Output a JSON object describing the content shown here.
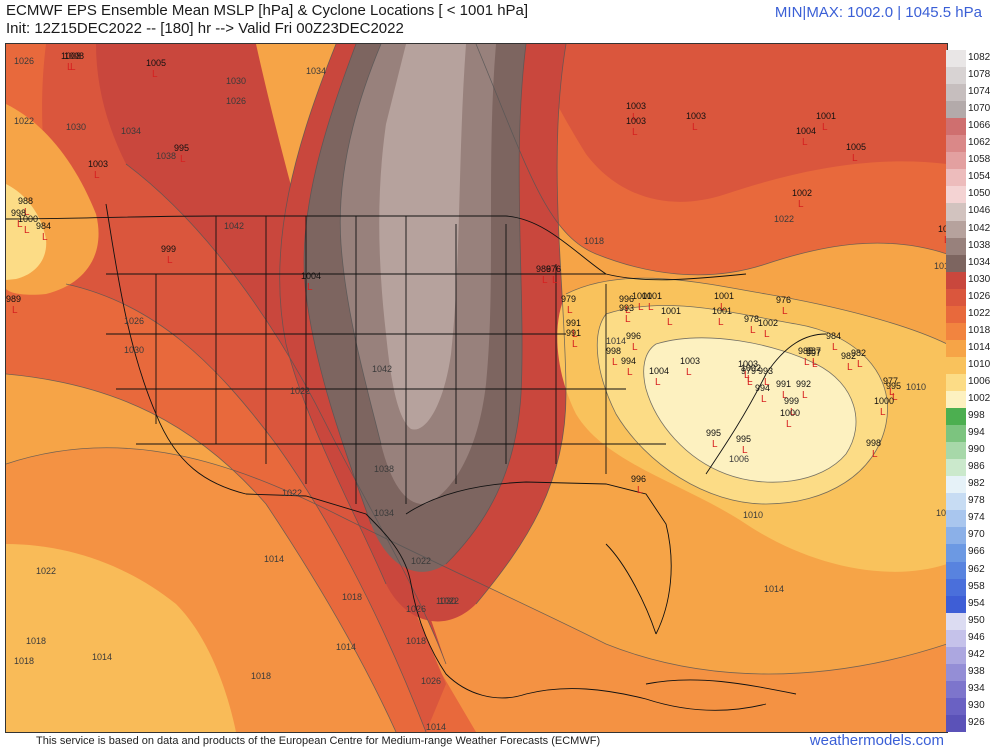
{
  "header": {
    "title": "ECMWF EPS Ensemble Mean MSLP [hPa] & Cyclone Locations [ < 1001 hPa]",
    "init_line": "Init: 12Z15DEC2022 -- [180] hr --> Valid Fri 00Z23DEC2022",
    "minmax": "MIN|MAX: 1002.0 | 1045.5 hPa"
  },
  "footer": {
    "disclaimer": "This service is based on data and products of the European Centre for Medium-range Weather Forecasts (ECMWF)",
    "brand": "weathermodels.com"
  },
  "colorbar": [
    {
      "label": "1082",
      "color": "#e9e6e6"
    },
    {
      "label": "1078",
      "color": "#d8d3d3"
    },
    {
      "label": "1074",
      "color": "#c6bebe"
    },
    {
      "label": "1070",
      "color": "#b3aaaa"
    },
    {
      "label": "1066",
      "color": "#cf6f6f"
    },
    {
      "label": "1062",
      "color": "#da8888"
    },
    {
      "label": "1058",
      "color": "#e3a0a0"
    },
    {
      "label": "1054",
      "color": "#edbcbc"
    },
    {
      "label": "1050",
      "color": "#f4d3d3"
    },
    {
      "label": "1046",
      "color": "#d2c3bf"
    },
    {
      "label": "1042",
      "color": "#b6a29d"
    },
    {
      "label": "1038",
      "color": "#98817c"
    },
    {
      "label": "1034",
      "color": "#7d6560"
    },
    {
      "label": "1030",
      "color": "#c9473d"
    },
    {
      "label": "1026",
      "color": "#da563d"
    },
    {
      "label": "1022",
      "color": "#e8693c"
    },
    {
      "label": "1018",
      "color": "#f2843f"
    },
    {
      "label": "1014",
      "color": "#f6a447"
    },
    {
      "label": "1010",
      "color": "#f9c25c"
    },
    {
      "label": "1006",
      "color": "#fcdc86"
    },
    {
      "label": "1002",
      "color": "#fdf1c0"
    },
    {
      "label": "998",
      "color": "#4caf50"
    },
    {
      "label": "994",
      "color": "#7cc47f"
    },
    {
      "label": "990",
      "color": "#a7d8a9"
    },
    {
      "label": "986",
      "color": "#cbe9cc"
    },
    {
      "label": "982",
      "color": "#e6f2f8"
    },
    {
      "label": "978",
      "color": "#c7dcf3"
    },
    {
      "label": "974",
      "color": "#a9c6ee"
    },
    {
      "label": "970",
      "color": "#8bb0e8"
    },
    {
      "label": "966",
      "color": "#6c99e3"
    },
    {
      "label": "962",
      "color": "#5883df"
    },
    {
      "label": "958",
      "color": "#4a6fdb"
    },
    {
      "label": "954",
      "color": "#3e5ed6"
    },
    {
      "label": "950",
      "color": "#dcdcf2"
    },
    {
      "label": "946",
      "color": "#c5c2ea"
    },
    {
      "label": "942",
      "color": "#aca7e0"
    },
    {
      "label": "938",
      "color": "#948ed6"
    },
    {
      "label": "934",
      "color": "#7d75cc"
    },
    {
      "label": "930",
      "color": "#6a61c3"
    },
    {
      "label": "926",
      "color": "#5b52b8"
    }
  ],
  "isobar_labels": [
    {
      "text": "1026"
    },
    {
      "text": "1022"
    },
    {
      "text": "1030"
    },
    {
      "text": "1034"
    },
    {
      "text": "1038"
    },
    {
      "text": "1042"
    },
    {
      "text": "1042"
    },
    {
      "text": "1038"
    },
    {
      "text": "1034"
    },
    {
      "text": "1030"
    },
    {
      "text": "1026"
    },
    {
      "text": "1022"
    },
    {
      "text": "1018"
    },
    {
      "text": "1014"
    },
    {
      "text": "1010"
    },
    {
      "text": "1006"
    },
    {
      "text": "1010"
    },
    {
      "text": "1014"
    },
    {
      "text": "1018"
    },
    {
      "text": "1022"
    },
    {
      "text": "1014"
    },
    {
      "text": "1018"
    },
    {
      "text": "1022"
    },
    {
      "text": "1022"
    },
    {
      "text": "1026"
    },
    {
      "text": "1030"
    },
    {
      "text": "1018"
    },
    {
      "text": "1014"
    },
    {
      "text": "1014"
    },
    {
      "text": "1014"
    },
    {
      "text": "1018"
    },
    {
      "text": "1026"
    },
    {
      "text": "1022"
    },
    {
      "text": "1018"
    },
    {
      "text": "1014"
    },
    {
      "text": "1034"
    },
    {
      "text": "1030"
    },
    {
      "text": "1026"
    },
    {
      "text": "1022"
    },
    {
      "text": "1018"
    }
  ],
  "cyclones": [
    {
      "text": "1005"
    },
    {
      "text": "1003"
    },
    {
      "text": "1003"
    },
    {
      "text": "1003"
    },
    {
      "text": "1004"
    },
    {
      "text": "1001"
    },
    {
      "text": "1005"
    },
    {
      "text": "1002"
    },
    {
      "text": "1001"
    },
    {
      "text": "988"
    },
    {
      "text": "998"
    },
    {
      "text": "1000"
    },
    {
      "text": "984"
    },
    {
      "text": "989"
    },
    {
      "text": "999"
    },
    {
      "text": "1004"
    },
    {
      "text": "1008"
    },
    {
      "text": "1008"
    },
    {
      "text": "995"
    },
    {
      "text": "1003"
    },
    {
      "text": "986"
    },
    {
      "text": "976"
    },
    {
      "text": "979"
    },
    {
      "text": "991"
    },
    {
      "text": "991"
    },
    {
      "text": "996"
    },
    {
      "text": "993"
    },
    {
      "text": "1001"
    },
    {
      "text": "1001"
    },
    {
      "text": "996"
    },
    {
      "text": "994"
    },
    {
      "text": "1004"
    },
    {
      "text": "1003"
    },
    {
      "text": "1001"
    },
    {
      "text": "976"
    },
    {
      "text": "984"
    },
    {
      "text": "982"
    },
    {
      "text": "982"
    },
    {
      "text": "977"
    },
    {
      "text": "995"
    },
    {
      "text": "1000"
    },
    {
      "text": "998"
    },
    {
      "text": "987"
    },
    {
      "text": "985"
    },
    {
      "text": "991"
    },
    {
      "text": "992"
    },
    {
      "text": "979"
    },
    {
      "text": "997"
    },
    {
      "text": "994"
    },
    {
      "text": "1002"
    },
    {
      "text": "1003"
    },
    {
      "text": "999"
    },
    {
      "text": "1000"
    },
    {
      "text": "995"
    },
    {
      "text": "995"
    },
    {
      "text": "996"
    },
    {
      "text": "978"
    },
    {
      "text": "1001"
    },
    {
      "text": "1002"
    },
    {
      "text": "993"
    },
    {
      "text": "1001"
    },
    {
      "text": "998"
    }
  ]
}
